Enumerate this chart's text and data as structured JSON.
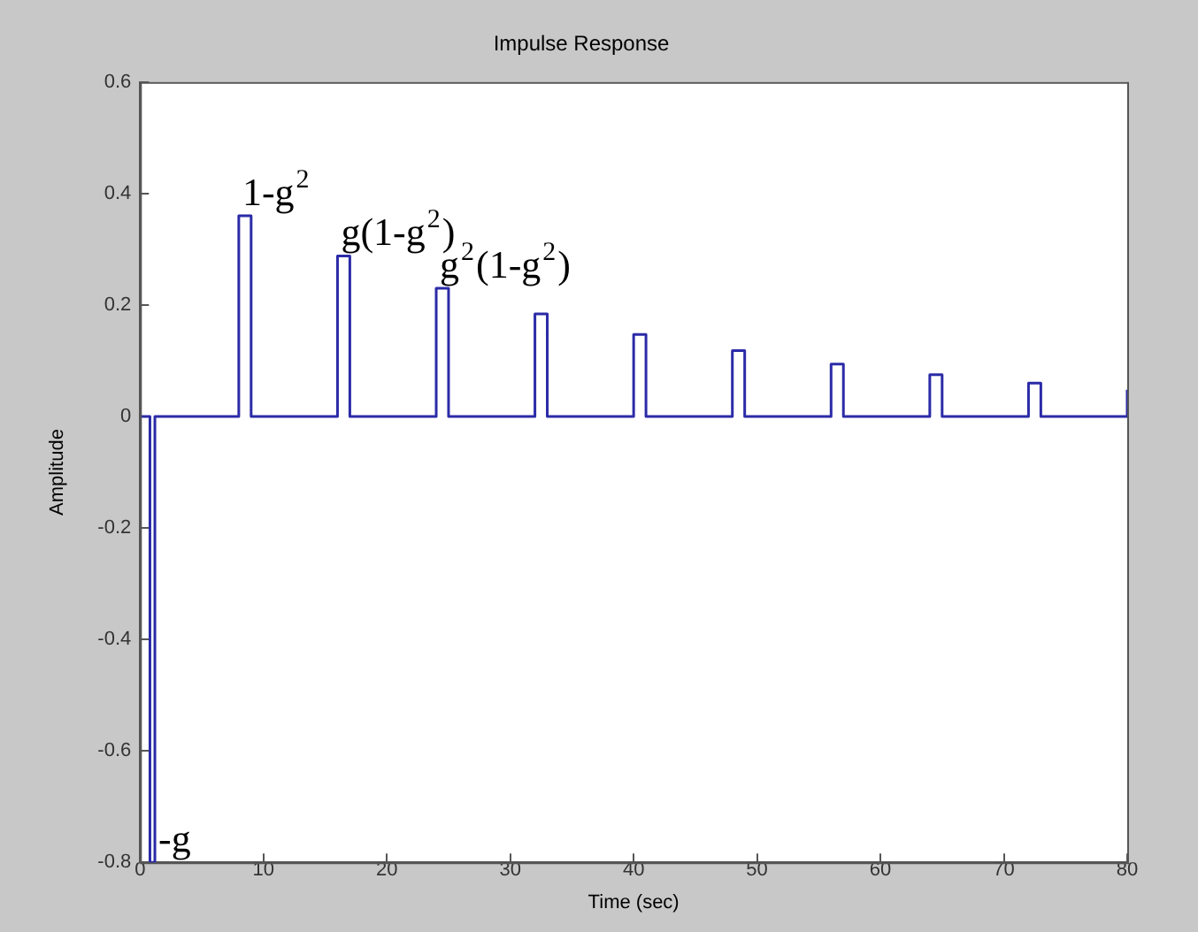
{
  "chart_data": {
    "type": "step",
    "title": "Impulse Response",
    "xlabel": "Time (sec)",
    "ylabel": "Amplitude",
    "x": [
      0,
      0.8,
      1.2,
      8,
      9,
      16,
      17,
      24,
      25,
      32,
      33,
      40,
      41,
      48,
      49,
      56,
      57,
      64,
      65,
      72,
      73,
      80
    ],
    "series": [
      {
        "color": "#2b2ba8",
        "values": [
          0,
          -0.8,
          0,
          0.36,
          0,
          0.288,
          0,
          0.23,
          0,
          0.184,
          0,
          0.147,
          0,
          0.118,
          0,
          0.094,
          0,
          0.075,
          0,
          0.06,
          0,
          0.048
        ]
      }
    ],
    "xlim": [
      0,
      80
    ],
    "xticks": [
      0,
      10,
      20,
      30,
      40,
      50,
      60,
      70,
      80
    ],
    "ylim": [
      -0.8,
      0.6
    ],
    "yticks": [
      -0.8,
      -0.6,
      -0.4,
      -0.2,
      0,
      0.2,
      0.4,
      0.6
    ],
    "grid": false,
    "legend": false,
    "marker": "none",
    "line_style": "solid",
    "annotations": [
      {
        "text": "1-g$^{2}$",
        "x": 8,
        "y": 0.36
      },
      {
        "text": "g(1-g$^{2}$)",
        "x": 16,
        "y": 0.288
      },
      {
        "text": "g$^{2}$(1-g$^{2}$)",
        "x": 24,
        "y": 0.23
      },
      {
        "text": "-g",
        "x": 1.2,
        "y": -0.8
      }
    ]
  }
}
